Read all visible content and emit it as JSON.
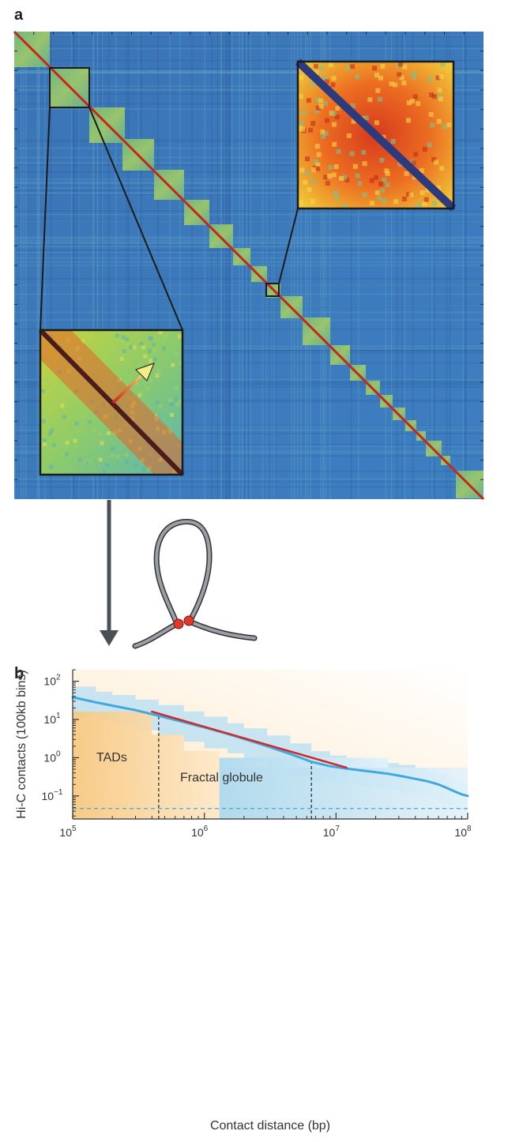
{
  "panel_a": {
    "letter": "a"
  },
  "panel_b": {
    "letter": "b"
  },
  "chart_data": {
    "type": "line",
    "xlabel": "Contact distance (bp)",
    "ylabel": "Hi-C contacts (100kb bins)",
    "xscale": "log",
    "yscale": "log",
    "xlim": [
      100000,
      100000000
    ],
    "ylim": [
      0.025,
      200
    ],
    "x_ticks": [
      {
        "base": "10",
        "exp": "5",
        "value": 100000
      },
      {
        "base": "10",
        "exp": "6",
        "value": 1000000
      },
      {
        "base": "10",
        "exp": "7",
        "value": 10000000
      },
      {
        "base": "10",
        "exp": "8",
        "value": 100000000
      }
    ],
    "y_ticks": [
      {
        "base": "10",
        "exp": "2",
        "value": 100
      },
      {
        "base": "10",
        "exp": "1",
        "value": 10
      },
      {
        "base": "10",
        "exp": "0",
        "value": 1
      },
      {
        "base": "10",
        "exp": "−1",
        "value": 0.1
      }
    ],
    "regions": [
      {
        "label": "TADs"
      },
      {
        "label": "Fractal globule"
      }
    ],
    "series": [
      {
        "color": "#3fa8dc",
        "x": [
          100000,
          150000,
          200000,
          300000,
          450000,
          700000,
          1000000,
          1500000,
          2000000,
          3000000,
          4500000,
          6500000,
          9000000,
          12000000,
          16000000,
          20000000,
          25000000,
          30000000,
          40000000,
          50000000,
          60000000,
          70000000,
          80000000,
          90000000,
          100000000
        ],
        "y": [
          38,
          28,
          23,
          17.5,
          12.5,
          8.5,
          6.2,
          4.2,
          3.1,
          2.0,
          1.25,
          0.78,
          0.6,
          0.52,
          0.46,
          0.42,
          0.38,
          0.34,
          0.28,
          0.24,
          0.2,
          0.16,
          0.13,
          0.11,
          0.1
        ]
      },
      {
        "color": "#d42727",
        "x": [
          400000,
          12000000
        ],
        "y": [
          16,
          0.55
        ]
      }
    ],
    "vlines": [
      450000,
      6500000
    ],
    "hline": 0.047
  },
  "colors": {
    "hic_blue": "#3a7cbf",
    "hic_red": "#c8251b",
    "curve": "#3fa8dc",
    "fit": "#d42727",
    "tad_shade": "#fbd9a0",
    "fg_shade": "#bfe2f3",
    "arrow": "#4a4f57"
  },
  "icons": {
    "loop": "chromatin-loop-icon"
  }
}
